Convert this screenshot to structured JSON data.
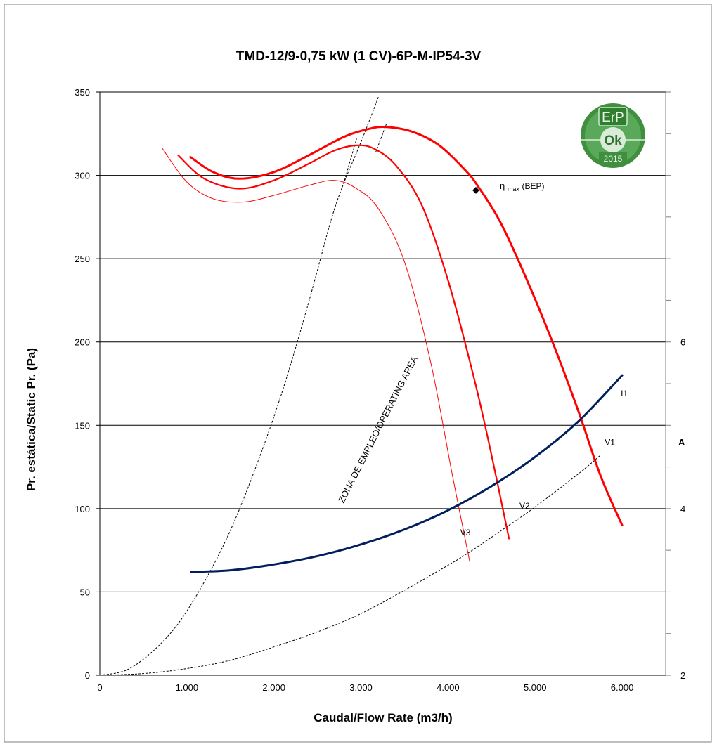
{
  "chart_data": {
    "type": "line",
    "title": "TMD-12/9-0,75 kW (1 CV)-6P-M-IP54-3V",
    "xlabel": "Caudal/Flow Rate (m3/h)",
    "ylabel": "Pr. estática/Static Pr. (Pa)",
    "xlim": [
      0,
      6500
    ],
    "ylim": [
      0,
      350
    ],
    "x_ticks": [
      "0",
      "1.000",
      "2.000",
      "3.000",
      "4.000",
      "5.000",
      "6.000"
    ],
    "x_tick_values": [
      0,
      1000,
      2000,
      3000,
      4000,
      5000,
      6000
    ],
    "y_ticks": [
      "0",
      "50",
      "100",
      "150",
      "200",
      "250",
      "300",
      "350"
    ],
    "y_tick_values": [
      0,
      50,
      100,
      150,
      200,
      250,
      300,
      350
    ],
    "grid": "horizontal",
    "right_axis": {
      "label": "A",
      "ticks": [
        "2",
        "4",
        "6"
      ],
      "tick_values": [
        2,
        4,
        6
      ],
      "range": [
        2,
        9
      ]
    },
    "series": [
      {
        "name": "V1",
        "color": "#ff0000",
        "stroke": 3,
        "x": [
          1040,
          1300,
          1600,
          2000,
          2400,
          2800,
          3100,
          3300,
          3600,
          3900,
          4200,
          4350,
          4600,
          4900,
          5200,
          5500,
          5750,
          6000
        ],
        "y": [
          311,
          302,
          298,
          302,
          312,
          323,
          328,
          329,
          326,
          318,
          303,
          293,
          272,
          238,
          200,
          158,
          120,
          90
        ]
      },
      {
        "name": "V2",
        "color": "#ff0000",
        "stroke": 2.2,
        "x": [
          900,
          1200,
          1600,
          2000,
          2400,
          2700,
          2950,
          3150,
          3400,
          3700,
          4000,
          4300,
          4500,
          4700
        ],
        "y": [
          312,
          298,
          292,
          297,
          307,
          315,
          318,
          316,
          306,
          282,
          237,
          178,
          132,
          82
        ]
      },
      {
        "name": "V3",
        "color": "#ff0000",
        "stroke": 1,
        "x": [
          720,
          1000,
          1300,
          1650,
          2000,
          2400,
          2700,
          2950,
          3200,
          3500,
          3800,
          4050,
          4250
        ],
        "y": [
          316,
          296,
          286,
          284,
          288,
          294,
          297,
          292,
          280,
          248,
          188,
          120,
          68
        ]
      },
      {
        "name": "I1",
        "axis": "right",
        "color": "#001f5c",
        "stroke": 3,
        "x": [
          1050,
          1500,
          2000,
          2500,
          3000,
          3500,
          4000,
          4500,
          5000,
          5500,
          6000
        ],
        "y": [
          3.24,
          3.26,
          3.33,
          3.43,
          3.57,
          3.75,
          3.98,
          4.27,
          4.62,
          5.05,
          5.6
        ]
      }
    ],
    "operating_area_boundaries": [
      {
        "name": "left",
        "x": [
          0,
          300,
          600,
          900,
          1200,
          1500,
          1800,
          2100,
          2400,
          2650,
          2800,
          3000,
          3200
        ],
        "y": [
          0,
          3,
          14,
          31,
          56,
          87,
          126,
          171,
          224,
          272,
          295,
          320,
          347
        ]
      },
      {
        "name": "right",
        "x": [
          0,
          500,
          1000,
          1500,
          2000,
          2500,
          3000,
          3500,
          4000,
          4250,
          4700,
          5000,
          5500,
          5750
        ],
        "y": [
          0,
          1,
          4,
          9,
          17,
          26,
          37,
          51,
          66,
          74,
          90,
          101,
          121,
          132
        ]
      }
    ],
    "bep": {
      "x": 4320,
      "y": 291
    },
    "annotations": {
      "operating_area": "ZONA DE EMPLEO/OPERATING AREA",
      "bep_eta": "η",
      "bep_sub": "max",
      "bep_label": "(BEP)"
    },
    "logo": {
      "top_text": "ErP",
      "middle_text": "Ok",
      "bottom_text": "2015"
    }
  }
}
